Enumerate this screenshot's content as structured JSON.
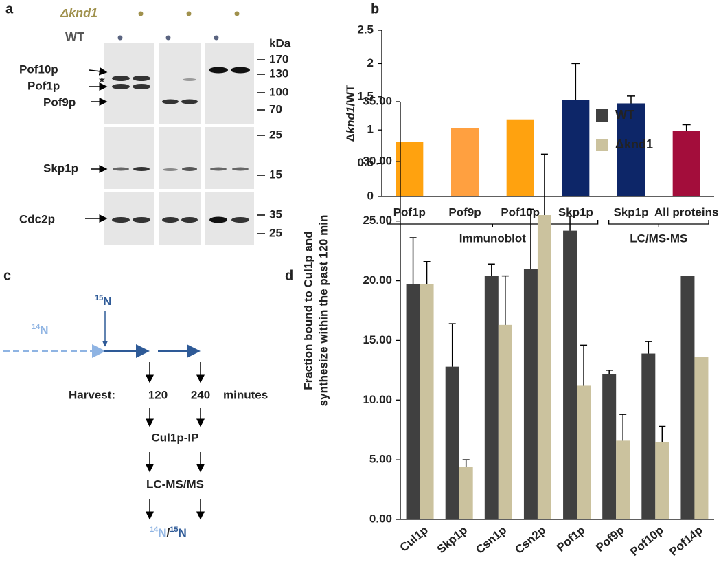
{
  "panel_labels": [
    "a",
    "b",
    "c",
    "d"
  ],
  "blot": {
    "strains": [
      "Δknd1",
      "WT"
    ],
    "kda_label": "kDa",
    "markers": [
      170,
      130,
      100,
      70,
      25,
      15,
      35,
      25
    ],
    "proteins": [
      "Pof10p",
      "Pof1p",
      "Pof9p",
      "Skp1p",
      "Cdc2p"
    ],
    "star": "★"
  },
  "diagram": {
    "label_15n": {
      "sup": "15",
      "base": "N"
    },
    "label_14n": {
      "sup": "14",
      "base": "N"
    },
    "harvest": "Harvest:",
    "times": [
      120,
      240
    ],
    "unit": "minutes",
    "steps": [
      "Cul1p-IP",
      "LC-MS/MS"
    ],
    "ratio": {
      "num_sup": "14",
      "num_base": "N",
      "sep": "/",
      "den_sup": "15",
      "den_base": "N"
    }
  },
  "chart_data": [
    {
      "type": "bar",
      "ylabel": [
        "Δ",
        "knd1",
        "/WT"
      ],
      "categories": [
        "Pof1p",
        "Pof9p",
        "Pof10p",
        "Skp1p",
        "Skp1p",
        "All proteins"
      ],
      "values": [
        0.82,
        1.03,
        1.16,
        1.45,
        1.4,
        0.99
      ],
      "errors": [
        null,
        null,
        null,
        0.55,
        0.11,
        0.09
      ],
      "colors": [
        "#ffa20f",
        "#ffa040",
        "#ffa20f",
        "#0d2668",
        "#0d2668",
        "#a30d3b"
      ],
      "groups": [
        "Immunoblot",
        "LC/MS-MS"
      ],
      "ylim": [
        0,
        2.5
      ],
      "yticks": [
        0,
        0.5,
        1,
        1.5,
        2,
        2.5
      ]
    },
    {
      "type": "grouped_bar",
      "ylabel": [
        "Fraction bound to Cul1p and",
        "synthesize within the past 120 min"
      ],
      "categories": [
        "Cul1p",
        "Skp1p",
        "Csn1p",
        "Csn2p",
        "Pof1p",
        "Pof9p",
        "Pof10p",
        "Pof14p"
      ],
      "series": [
        {
          "name": "WT",
          "color": "#404040",
          "values": [
            19.7,
            12.8,
            20.4,
            21.0,
            24.2,
            12.2,
            13.9,
            20.4
          ],
          "errors": [
            3.9,
            3.6,
            1.0,
            5.0,
            1.2,
            0.3,
            1.0,
            null
          ]
        },
        {
          "name": "Δknd1",
          "color": "#cbc29e",
          "values": [
            19.7,
            4.4,
            16.3,
            25.5,
            11.2,
            6.6,
            6.5,
            13.6
          ],
          "errors": [
            1.9,
            0.6,
            4.1,
            5.1,
            3.4,
            2.2,
            1.3,
            null
          ]
        }
      ],
      "ylim": [
        0,
        35
      ],
      "yticks": [
        {
          "value": 0,
          "label": "0.00"
        },
        {
          "value": 5,
          "label": "5.00"
        },
        {
          "value": 10,
          "label": "10.00"
        },
        {
          "value": 15,
          "label": "15.00"
        },
        {
          "value": 20,
          "label": "20.00"
        },
        {
          "value": 25,
          "label": "25.00"
        },
        {
          "value": 30,
          "label": "30.00"
        },
        {
          "value": 35,
          "label": "35.00"
        }
      ],
      "legend": "top-right"
    }
  ]
}
